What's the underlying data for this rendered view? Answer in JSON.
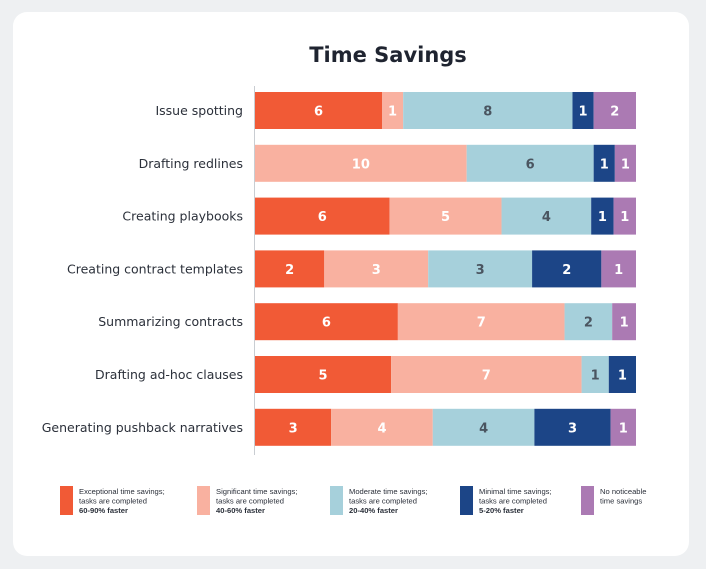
{
  "chart_data": {
    "type": "bar",
    "orientation": "horizontal",
    "stacked": true,
    "title": "Time Savings",
    "categories": [
      "Issue spotting",
      "Drafting redlines",
      "Creating playbooks",
      "Creating contract templates",
      "Summarizing contracts",
      "Drafting ad-hoc clauses",
      "Generating pushback narratives"
    ],
    "series": [
      {
        "name": "Exceptional time savings",
        "legend_lines": [
          "Exceptional time savings;",
          "tasks are completed",
          "60-90% faster"
        ],
        "color": "#f15a36",
        "label_color": "#ffffff",
        "values": [
          6,
          0,
          6,
          2,
          6,
          5,
          3
        ]
      },
      {
        "name": "Significant time savings",
        "legend_lines": [
          "Significant time savings;",
          "tasks are completed",
          "40-60% faster"
        ],
        "color": "#f9b1a0",
        "label_color": "#ffffff",
        "values": [
          1,
          10,
          5,
          3,
          7,
          7,
          4
        ]
      },
      {
        "name": "Moderate time savings",
        "legend_lines": [
          "Moderate time savings;",
          "tasks are completed",
          "20-40% faster"
        ],
        "color": "#a6d0db",
        "label_color": "#4a5560",
        "values": [
          8,
          6,
          4,
          3,
          2,
          1,
          4
        ]
      },
      {
        "name": "Minimal time savings",
        "legend_lines": [
          "Minimal time savings;",
          "tasks are completed",
          "5-20% faster"
        ],
        "color": "#1c4587",
        "label_color": "#ffffff",
        "values": [
          1,
          1,
          1,
          2,
          0,
          1,
          3
        ]
      },
      {
        "name": "No noticeable time savings",
        "legend_lines": [
          "No noticeable",
          "time savings"
        ],
        "color": "#ab7ab3",
        "label_color": "#ffffff",
        "values": [
          2,
          1,
          1,
          1,
          1,
          0,
          1
        ]
      }
    ],
    "legend_position": "bottom",
    "grid": false
  }
}
